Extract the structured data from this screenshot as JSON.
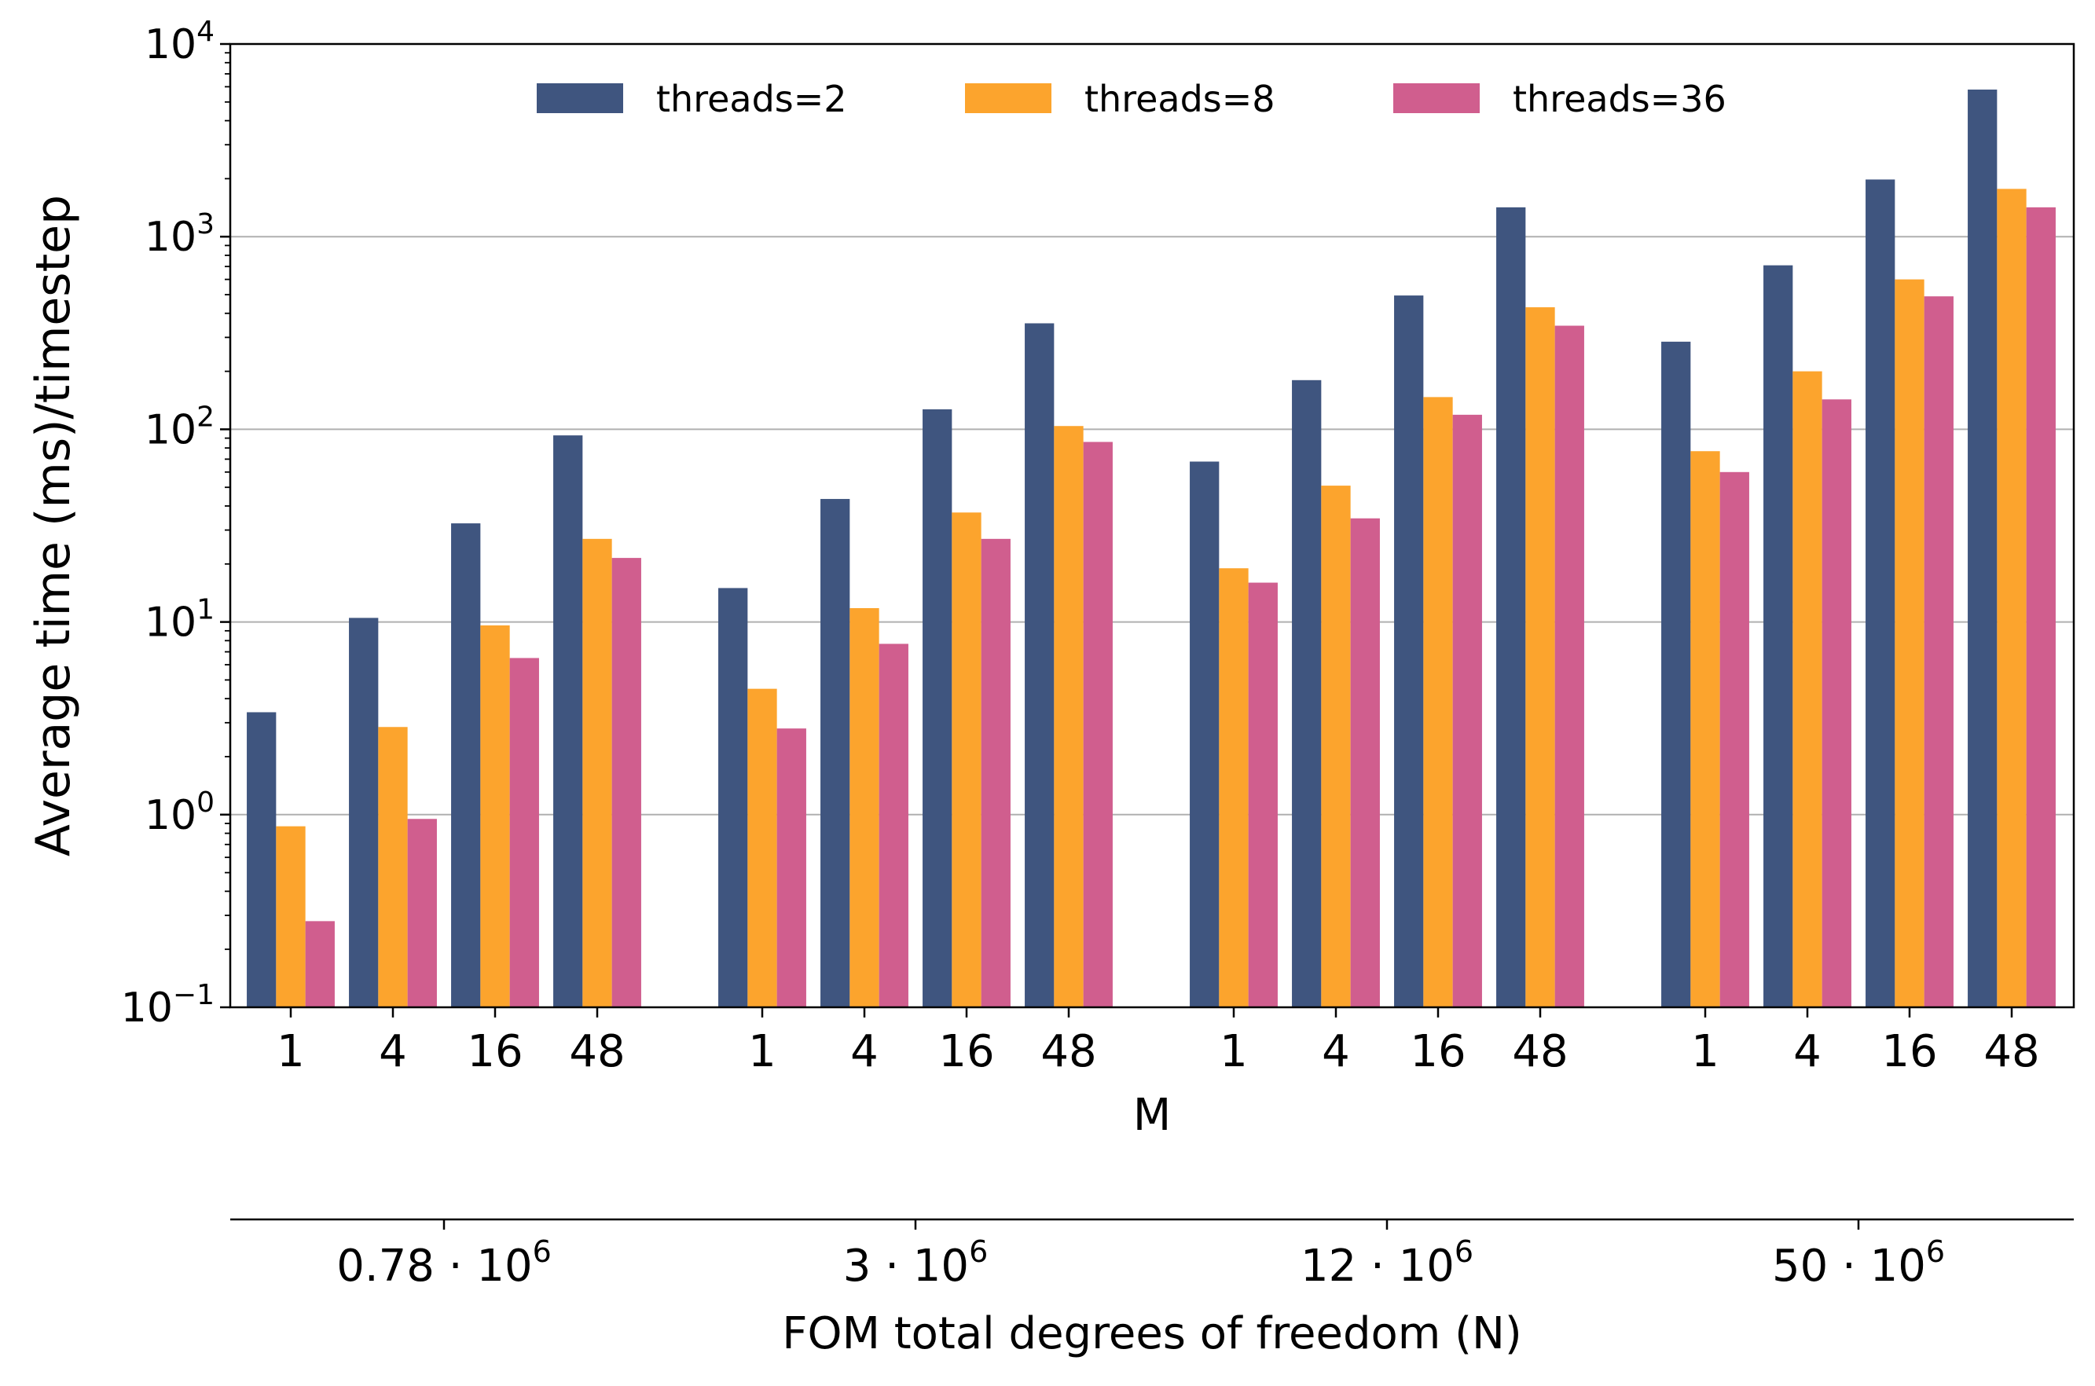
{
  "chart_data": {
    "type": "bar",
    "yscale": "log",
    "ylabel": "Average time (ms)/timestep",
    "xlabel": "M",
    "secondary_xlabel": "FOM total degrees of freedom (N)",
    "ylim": [
      0.1,
      10000
    ],
    "y_ticks": [
      {
        "value": 0.1,
        "base": "10",
        "exp": "−1"
      },
      {
        "value": 1,
        "base": "10",
        "exp": "0"
      },
      {
        "value": 10,
        "base": "10",
        "exp": "1"
      },
      {
        "value": 100,
        "base": "10",
        "exp": "2"
      },
      {
        "value": 1000,
        "base": "10",
        "exp": "3"
      },
      {
        "value": 10000,
        "base": "10",
        "exp": "4"
      }
    ],
    "grid": true,
    "legend_position": "top",
    "groups": [
      {
        "mantissa": "0.78",
        "dot": "·",
        "base": "10",
        "exp": "6",
        "m_labels": [
          "1",
          "4",
          "16",
          "48"
        ]
      },
      {
        "mantissa": "3",
        "dot": "·",
        "base": "10",
        "exp": "6",
        "m_labels": [
          "1",
          "4",
          "16",
          "48"
        ]
      },
      {
        "mantissa": "12",
        "dot": "·",
        "base": "10",
        "exp": "6",
        "m_labels": [
          "1",
          "4",
          "16",
          "48"
        ]
      },
      {
        "mantissa": "50",
        "dot": "·",
        "base": "10",
        "exp": "6",
        "m_labels": [
          "1",
          "4",
          "16",
          "48"
        ]
      }
    ],
    "series": [
      {
        "name": "threads=2",
        "color": "#3f557f",
        "values": [
          3.4,
          10.5,
          32.5,
          93,
          15,
          43.5,
          127,
          355,
          68,
          180,
          495,
          1420,
          285,
          710,
          1980,
          5800
        ]
      },
      {
        "name": "threads=8",
        "color": "#fca42d",
        "values": [
          0.87,
          2.85,
          9.6,
          27,
          4.5,
          11.8,
          37,
          104,
          19,
          51,
          147,
          430,
          77,
          200,
          600,
          1770
        ]
      },
      {
        "name": "threads=36",
        "color": "#d05e8e",
        "values": [
          0.28,
          0.95,
          6.5,
          21.5,
          2.8,
          7.7,
          27,
          86,
          16,
          34.5,
          119,
          345,
          60,
          143,
          490,
          1420
        ]
      }
    ]
  }
}
